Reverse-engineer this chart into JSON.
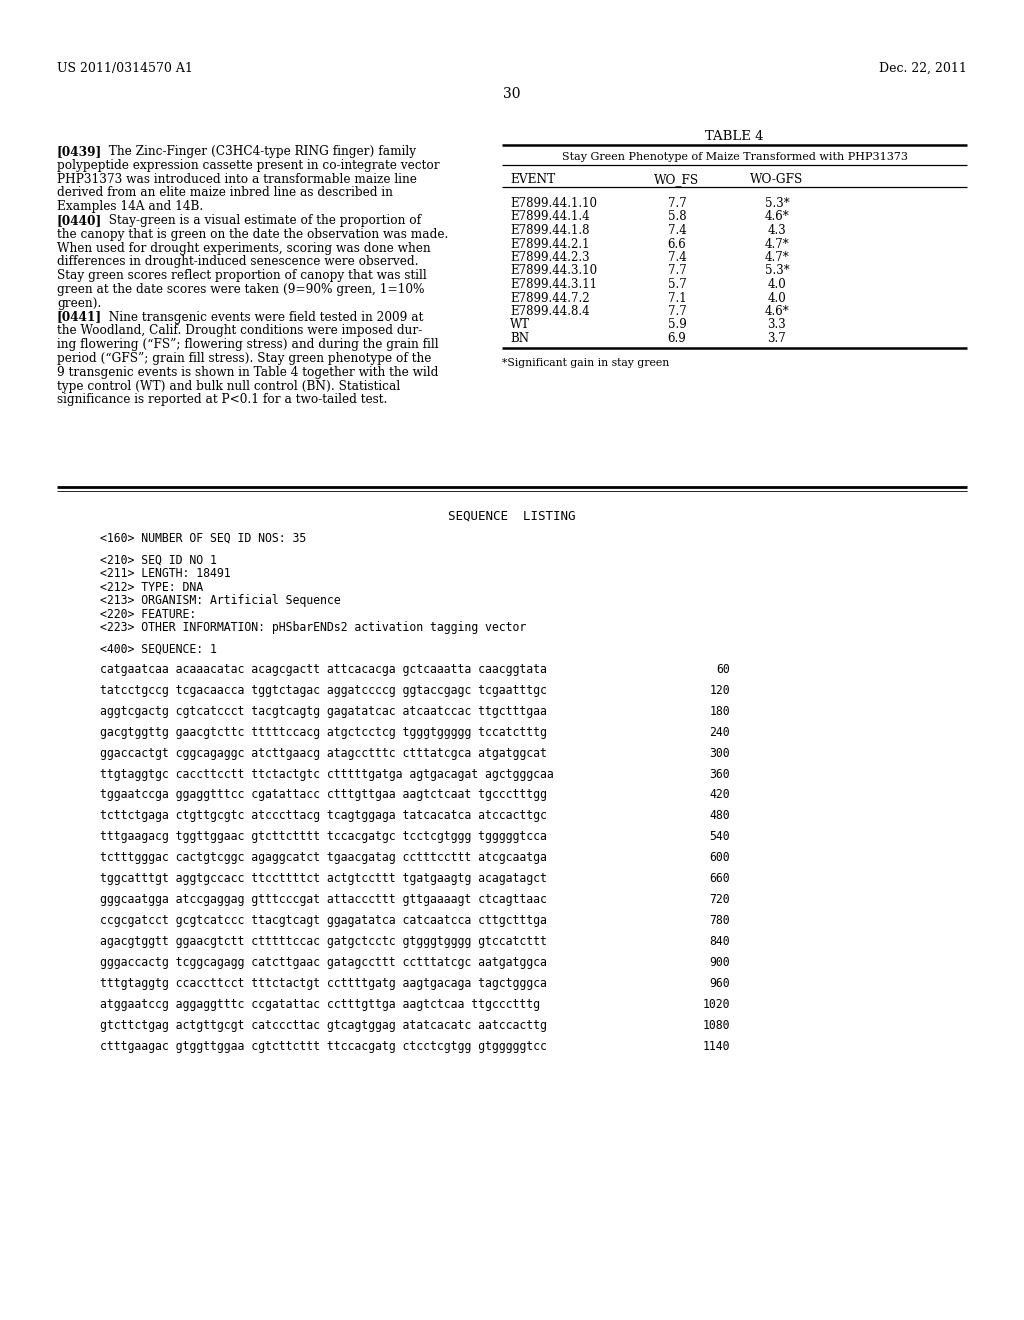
{
  "bg_color": "#ffffff",
  "header_left": "US 2011/0314570 A1",
  "header_right": "Dec. 22, 2011",
  "page_number": "30",
  "table_title": "TABLE 4",
  "table_subtitle": "Stay Green Phenotype of Maize Transformed with PHP31373",
  "table_col_headers": [
    "EVENT",
    "WO_FS",
    "WO-GFS"
  ],
  "table_rows": [
    [
      "E7899.44.1.10",
      "7.7",
      "5.3*"
    ],
    [
      "E7899.44.1.4",
      "5.8",
      "4.6*"
    ],
    [
      "E7899.44.1.8",
      "7.4",
      "4.3"
    ],
    [
      "E7899.44.2.1",
      "6.6",
      "4.7*"
    ],
    [
      "E7899.44.2.3",
      "7.4",
      "4.7*"
    ],
    [
      "E7899.44.3.10",
      "7.7",
      "5.3*"
    ],
    [
      "E7899.44.3.11",
      "5.7",
      "4.0"
    ],
    [
      "E7899.44.7.2",
      "7.1",
      "4.0"
    ],
    [
      "E7899.44.8.4",
      "7.7",
      "4.6*"
    ],
    [
      "WT",
      "5.9",
      "3.3"
    ],
    [
      "BN",
      "6.9",
      "3.7"
    ]
  ],
  "table_footnote": "*Significant gain in stay green",
  "p439_lines": [
    "[0439]   The Zinc-Finger (C3HC4-type RING finger) family",
    "polypeptide expression cassette present in co-integrate vector",
    "PHP31373 was introduced into a transformable maize line",
    "derived from an elite maize inbred line as described in",
    "Examples 14A and 14B."
  ],
  "p440_lines": [
    "[0440]   Stay-green is a visual estimate of the proportion of",
    "the canopy that is green on the date the observation was made.",
    "When used for drought experiments, scoring was done when",
    "differences in drought-induced senescence were observed.",
    "Stay green scores reflect proportion of canopy that was still",
    "green at the date scores were taken (9=90% green, 1=10%",
    "green)."
  ],
  "p441_lines": [
    "[0441]   Nine transgenic events were field tested in 2009 at",
    "the Woodland, Calif. Drought conditions were imposed dur-",
    "ing flowering (“FS”; flowering stress) and during the grain fill",
    "period (“GFS”; grain fill stress). Stay green phenotype of the",
    "9 transgenic events is shown in Table 4 together with the wild",
    "type control (WT) and bulk null control (BN). Statistical",
    "significance is reported at P<0.1 for a two-tailed test."
  ],
  "seq_title": "SEQUENCE  LISTING",
  "seq_meta": [
    "<160> NUMBER OF SEQ ID NOS: 35",
    "",
    "<210> SEQ ID NO 1",
    "<211> LENGTH: 18491",
    "<212> TYPE: DNA",
    "<213> ORGANISM: Artificial Sequence",
    "<220> FEATURE:",
    "<223> OTHER INFORMATION: pHSbarENDs2 activation tagging vector",
    "",
    "<400> SEQUENCE: 1"
  ],
  "seq_data": [
    [
      "catgaatcaa acaaacatac acagcgactt attcacacga gctcaaatta caacggtata",
      "60"
    ],
    [
      "tatcctgccg tcgacaacca tggtctagac aggatccccg ggtaccgagc tcgaatttgc",
      "120"
    ],
    [
      "aggtcgactg cgtcatccct tacgtcagtg gagatatcac atcaatccac ttgctttgaa",
      "180"
    ],
    [
      "gacgtggttg gaacgtcttc tttttccacg atgctcctcg tgggtggggg tccatctttg",
      "240"
    ],
    [
      "ggaccactgt cggcagaggc atcttgaacg atagcctttc ctttatcgca atgatggcat",
      "300"
    ],
    [
      "ttgtaggtgc caccttcctt ttctactgtc ctttttgatga agtgacagat agctgggcaa",
      "360"
    ],
    [
      "tggaatccga ggaggtttcc cgatattacc ctttgttgaa aagtctcaat tgccctttgg",
      "420"
    ],
    [
      "tcttctgaga ctgttgcgtc atcccttacg tcagtggaga tatcacatca atccacttgc",
      "480"
    ],
    [
      "tttgaagacg tggttggaac gtcttctttt tccacgatgc tcctcgtggg tgggggtcca",
      "540"
    ],
    [
      "tctttgggac cactgtcggc agaggcatct tgaacgatag cctttccttt atcgcaatga",
      "600"
    ],
    [
      "tggcatttgt aggtgccacc ttccttttct actgtccttt tgatgaagtg acagatagct",
      "660"
    ],
    [
      "gggcaatgga atccgaggag gtttcccgat attacccttt gttgaaaagt ctcagttaac",
      "720"
    ],
    [
      "ccgcgatcct gcgtcatccc ttacgtcagt ggagatatca catcaatcca cttgctttga",
      "780"
    ],
    [
      "agacgtggtt ggaacgtctt ctttttccac gatgctcctc gtgggtgggg gtccatcttt",
      "840"
    ],
    [
      "gggaccactg tcggcagagg catcttgaac gatagccttt cctttatcgc aatgatggca",
      "900"
    ],
    [
      "tttgtaggtg ccaccttcct tttctactgt ccttttgatg aagtgacaga tagctgggca",
      "960"
    ],
    [
      "atggaatccg aggaggtttc ccgatattac cctttgttga aagtctcaa ttgccctttg",
      "1020"
    ],
    [
      "gtcttctgag actgttgcgt catcccttac gtcagtggag atatcacatc aatccacttg",
      "1080"
    ],
    [
      "ctttgaagac gtggttggaa cgtcttcttt ttccacgatg ctcctcgtgg gtgggggtcc",
      "1140"
    ]
  ]
}
